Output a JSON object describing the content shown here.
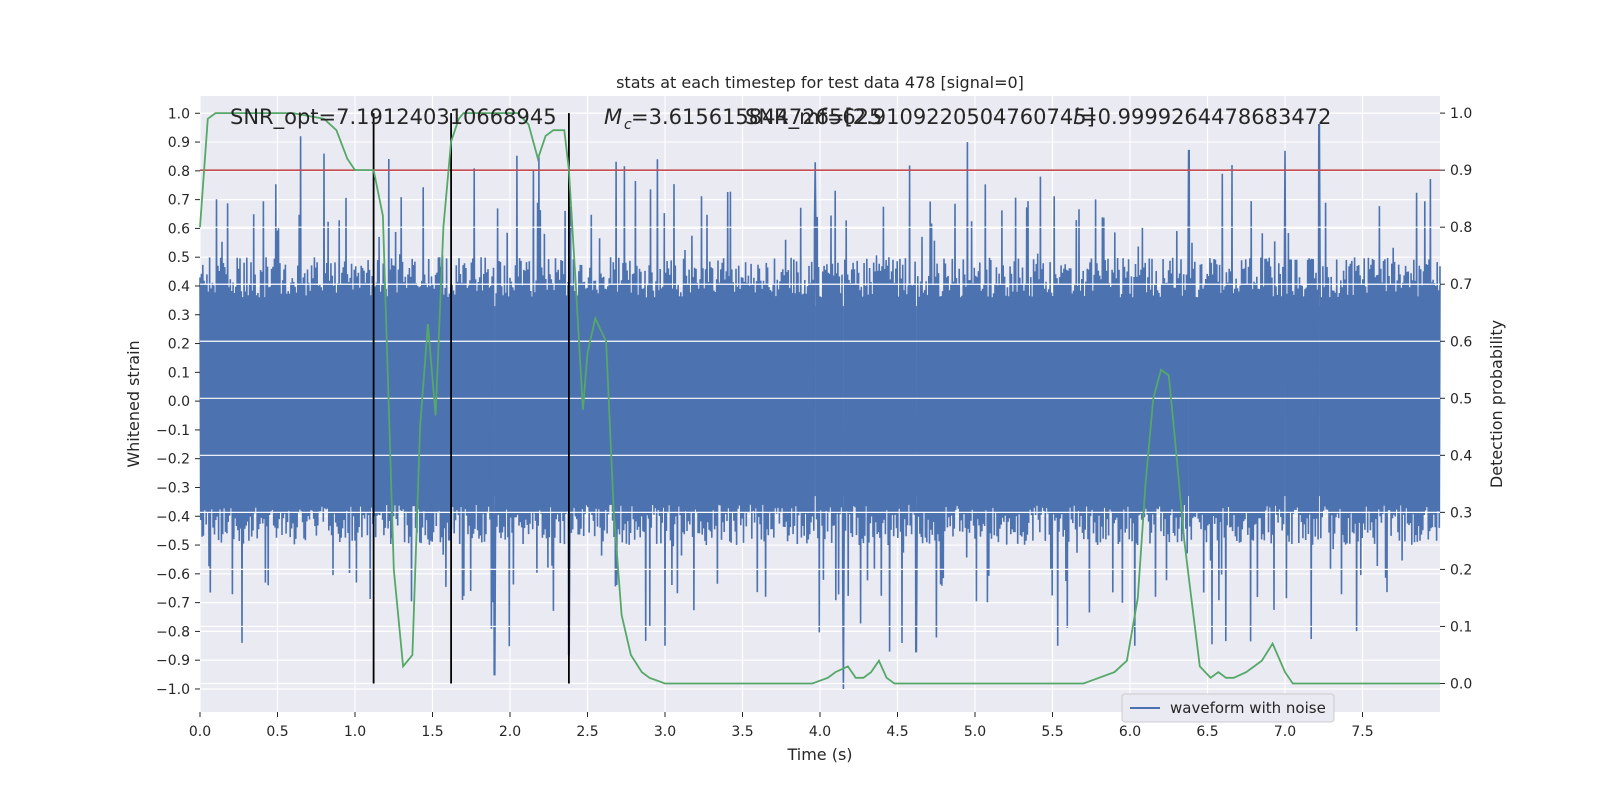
{
  "colors": {
    "background": "#ffffff",
    "plot_background": "#eaeaf2",
    "grid": "#ffffff",
    "waveform": "#4c72b0",
    "probability": "#55a868",
    "threshold": "#c44e52",
    "markers": "#000000",
    "text": "#262626"
  },
  "chart_data": {
    "type": "line",
    "title": "stats at each timestep for test data 478 [signal=0]",
    "xlabel": "Time (s)",
    "ylabel_left": "Whitened strain",
    "ylabel_right": "Detection probability",
    "xlim": [
      0.0,
      8.0
    ],
    "ylim_left": [
      -1.08,
      1.06
    ],
    "ylim_right": [
      -0.05,
      1.03
    ],
    "xticks": [
      "0.0",
      "0.5",
      "1.0",
      "1.5",
      "2.0",
      "2.5",
      "3.0",
      "3.5",
      "4.0",
      "4.5",
      "5.0",
      "5.5",
      "6.0",
      "6.5",
      "7.0",
      "7.5"
    ],
    "yticks_left": [
      "1.0",
      "0.9",
      "0.8",
      "0.7",
      "0.6",
      "0.5",
      "0.4",
      "0.3",
      "0.2",
      "0.1",
      "0.0",
      "−0.1",
      "−0.2",
      "−0.3",
      "−0.4",
      "−0.5",
      "−0.6",
      "−0.7",
      "−0.8",
      "−0.9",
      "−1.0"
    ],
    "yticks_right": [
      "1.0",
      "0.9",
      "0.8",
      "0.7",
      "0.6",
      "0.5",
      "0.4",
      "0.3",
      "0.2",
      "0.1",
      "0.0"
    ],
    "grid": true,
    "legend": {
      "position": "lower-right",
      "entries": [
        "waveform with noise"
      ]
    },
    "annotations": [
      "SNR_opt=7.191240310668945",
      "=3.6156158447265625",
      "SNR_mf=[2.9109220504760745]",
      "=0.9999264478683472"
    ],
    "annotation_symbols": {
      "mc_symbol": "M",
      "mc_subscript": "c",
      "cut_symbol": "l"
    },
    "threshold_probability": 0.9,
    "vertical_markers_time": [
      1.12,
      1.62,
      2.38
    ],
    "waveform_envelope": {
      "typical_abs_amplitude": 0.4,
      "spikes": [
        {
          "t": 0.27,
          "y": -0.84
        },
        {
          "t": 0.65,
          "y": 0.92
        },
        {
          "t": 0.8,
          "y": 0.86
        },
        {
          "t": 1.9,
          "y": -0.95
        },
        {
          "t": 2.15,
          "y": 0.8
        },
        {
          "t": 2.38,
          "y": -0.88
        },
        {
          "t": 2.95,
          "y": 0.84
        },
        {
          "t": 3.0,
          "y": -0.85
        },
        {
          "t": 3.97,
          "y": 0.83
        },
        {
          "t": 4.15,
          "y": -1.0
        },
        {
          "t": 4.45,
          "y": -0.87
        },
        {
          "t": 4.62,
          "y": -0.87
        },
        {
          "t": 4.95,
          "y": 0.9
        },
        {
          "t": 6.03,
          "y": -0.85
        },
        {
          "t": 6.38,
          "y": 0.87
        },
        {
          "t": 7.0,
          "y": 0.87
        },
        {
          "t": 7.22,
          "y": 0.96
        }
      ]
    },
    "probability_series": {
      "name": "",
      "x": [
        0.0,
        0.05,
        0.1,
        0.2,
        0.4,
        0.6,
        0.8,
        0.88,
        0.95,
        1.0,
        1.05,
        1.12,
        1.18,
        1.25,
        1.31,
        1.37,
        1.42,
        1.47,
        1.52,
        1.57,
        1.62,
        1.67,
        1.7,
        1.75,
        1.9,
        2.0,
        2.05,
        2.12,
        2.18,
        2.23,
        2.28,
        2.35,
        2.38,
        2.42,
        2.47,
        2.5,
        2.55,
        2.62,
        2.67,
        2.72,
        2.78,
        2.85,
        2.9,
        3.0,
        3.2,
        3.4,
        3.6,
        3.8,
        3.95,
        4.05,
        4.1,
        4.18,
        4.23,
        4.28,
        4.33,
        4.38,
        4.43,
        4.48,
        4.55,
        4.7,
        4.9,
        5.1,
        5.3,
        5.5,
        5.7,
        5.8,
        5.9,
        5.98,
        6.05,
        6.1,
        6.15,
        6.2,
        6.25,
        6.3,
        6.35,
        6.4,
        6.45,
        6.52,
        6.57,
        6.62,
        6.67,
        6.75,
        6.85,
        6.92,
        7.0,
        7.05,
        7.1,
        7.2,
        7.4,
        7.6,
        7.85,
        7.92,
        8.0
      ],
      "y": [
        0.8,
        0.99,
        1.0,
        1.0,
        1.0,
        1.0,
        0.99,
        0.97,
        0.92,
        0.9,
        0.9,
        0.9,
        0.82,
        0.2,
        0.03,
        0.05,
        0.45,
        0.63,
        0.47,
        0.8,
        0.95,
        0.99,
        1.0,
        1.0,
        1.0,
        1.0,
        1.0,
        0.98,
        0.92,
        0.96,
        0.97,
        0.97,
        0.9,
        0.72,
        0.48,
        0.58,
        0.64,
        0.6,
        0.3,
        0.12,
        0.05,
        0.02,
        0.01,
        0.0,
        0.0,
        0.0,
        0.0,
        0.0,
        0.0,
        0.01,
        0.02,
        0.03,
        0.01,
        0.01,
        0.02,
        0.04,
        0.01,
        0.0,
        0.0,
        0.0,
        0.0,
        0.0,
        0.0,
        0.0,
        0.0,
        0.01,
        0.02,
        0.04,
        0.15,
        0.35,
        0.5,
        0.55,
        0.54,
        0.4,
        0.25,
        0.14,
        0.03,
        0.01,
        0.02,
        0.01,
        0.01,
        0.02,
        0.04,
        0.07,
        0.02,
        0.0,
        0.0,
        0.0,
        0.0,
        0.0,
        0.0,
        0.0,
        0.0
      ]
    }
  }
}
